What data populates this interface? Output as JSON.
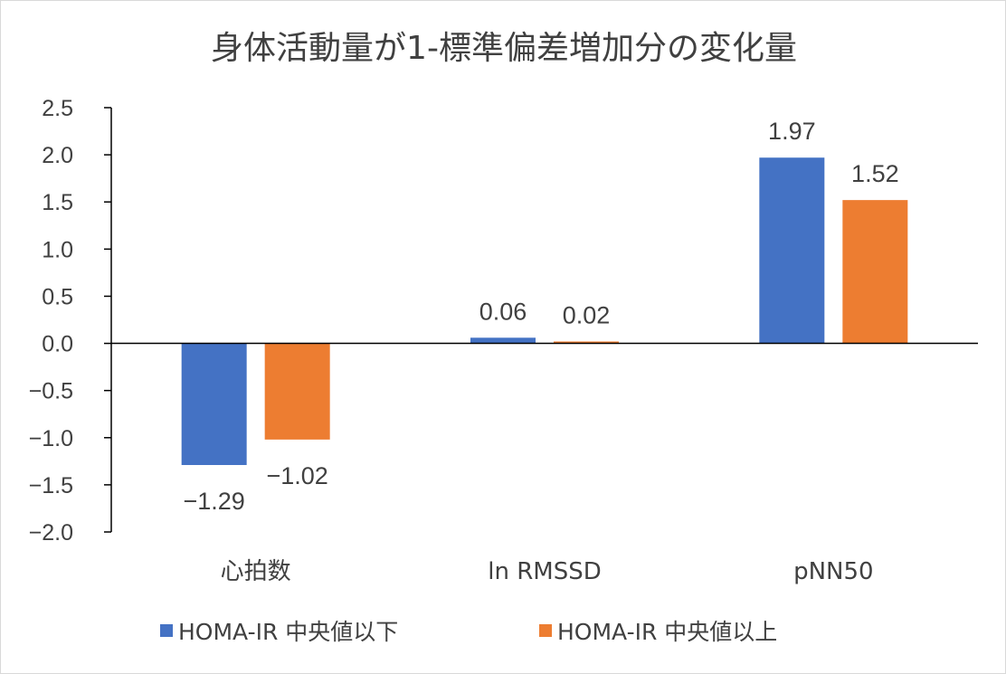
{
  "chart_data": {
    "type": "bar",
    "title": "身体活動量が1-標準偏差増加分の変化量",
    "categories": [
      "心拍数",
      "ln RMSSD",
      "pNN50"
    ],
    "series": [
      {
        "name": "HOMA-IR 中央値以下",
        "values": [
          -1.29,
          0.06,
          1.97
        ],
        "labels": [
          "−1.29",
          "0.06",
          "1.97"
        ],
        "color": "#4472c4"
      },
      {
        "name": "HOMA-IR 中央値以上",
        "values": [
          -1.02,
          0.02,
          1.52
        ],
        "labels": [
          "−1.02",
          "0.02",
          "1.52"
        ],
        "color": "#ed7d31"
      }
    ],
    "yticks": [
      2.5,
      2.0,
      1.5,
      1.0,
      0.5,
      0.0,
      -0.5,
      -1.0,
      -1.5,
      -2.0
    ],
    "ytick_labels": [
      "2.5",
      "2.0",
      "1.5",
      "1.0",
      "0.5",
      "0.0",
      "−0.5",
      "−1.0",
      "−1.5",
      "−2.0"
    ],
    "ylim": [
      -2.0,
      2.5
    ],
    "xlabel": "",
    "ylabel": "",
    "grid": false,
    "legend_position": "bottom",
    "data_labels": true
  }
}
